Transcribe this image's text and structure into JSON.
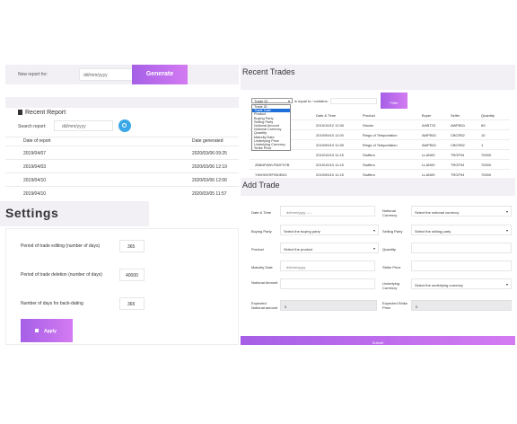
{
  "new_report": {
    "label": "New report for:",
    "date_placeholder": "dd/mm/yyyy",
    "generate_label": "Generate"
  },
  "recent_report": {
    "title": "Recent Report",
    "search_label": "Search report:",
    "search_placeholder": "dd/mm/yyyy",
    "columns": [
      "Date of report",
      "Date generated"
    ],
    "rows": [
      [
        "2019/04/07",
        "2020/03/06 09:25"
      ],
      [
        "2019/04/03",
        "2020/03/06 12:19"
      ],
      [
        "2019/04/10",
        "2020/03/06 12:06"
      ],
      [
        "2019/04/10",
        "2020/03/05 11:57"
      ]
    ]
  },
  "settings": {
    "title": "Settings",
    "fields": [
      {
        "label": "Period of trade editing (number of days)",
        "value": "365"
      },
      {
        "label": "Period of trade deletion (number of days)",
        "value": "40000"
      },
      {
        "label": "Number of days for back-dating",
        "value": "365"
      }
    ],
    "apply_label": "Apply"
  },
  "recent_trades": {
    "title": "Recent Trades",
    "filter_select": "Trade ID",
    "filter_op": "is equal to / contains:",
    "filter_button": "Filter",
    "dropdown_options": [
      "Trade ID",
      "Trade Date",
      "Product",
      "Buying Party",
      "Selling Party",
      "Notional Amount",
      "Notional Currency",
      "Quantity",
      "Maturity Date",
      "Underlying Price",
      "Underlying Currency",
      "Strike Price"
    ],
    "columns": [
      "Trade ID",
      "Date & Time",
      "Product",
      "Buyer",
      "Seller",
      "Quantity"
    ],
    "rows": [
      [
        "",
        "2019/10/12 12:00",
        "Stocks",
        "AHBT23",
        "AWPB01",
        "69"
      ],
      [
        "",
        "2019/09/10 11:00",
        "Rings of Teleportation",
        "AWPB01",
        "CBCR52",
        "10"
      ],
      [
        "",
        "2019/09/10 12:00",
        "Rings of Teleportation",
        "AWPB01",
        "CBCR52",
        "1"
      ],
      [
        "",
        "2019/10/10 11:15",
        "Stuffers",
        "LLAN09",
        "TRGF94",
        "70000"
      ],
      [
        "2B6NF6WLF6DFH7B",
        "2019/10/10 11:15",
        "Stuffers",
        "LLAN09",
        "TRGF94",
        "70000"
      ],
      [
        "YNH90XRF930E6G",
        "2019/09/10 11:15",
        "Stuffers",
        "LLAN09",
        "TRGF94",
        "70000"
      ]
    ]
  },
  "add_trade": {
    "title": "Add Trade",
    "left_fields": [
      {
        "label": "Date & Time",
        "value": "dd/mm/yyyy --:--",
        "kind": "input"
      },
      {
        "label": "Buying Party",
        "value": "Select the buying party",
        "kind": "select"
      },
      {
        "label": "Product",
        "value": "Select the product",
        "kind": "select"
      },
      {
        "label": "Maturity Date",
        "value": "dd/mm/yyyy",
        "kind": "input"
      },
      {
        "label": "Notional Amount",
        "value": "",
        "kind": "input"
      },
      {
        "label": "Expected Notional amount",
        "value": "0",
        "kind": "readonly"
      }
    ],
    "right_fields": [
      {
        "label": "Notional Currency",
        "value": "Select the notional currency",
        "kind": "select"
      },
      {
        "label": "Selling Party",
        "value": "Select the selling party",
        "kind": "select"
      },
      {
        "label": "Quantity",
        "value": "",
        "kind": "input"
      },
      {
        "label": "Strike Price",
        "value": "",
        "kind": "input"
      },
      {
        "label": "Underlying Currency",
        "value": "Select the underlying currency",
        "kind": "select"
      },
      {
        "label": "Expected Strike Price",
        "value": "0",
        "kind": "readonly"
      }
    ],
    "submit_label": "Submit"
  },
  "colors": {
    "accent": "#a55fe6",
    "panel": "#f2eff5"
  }
}
